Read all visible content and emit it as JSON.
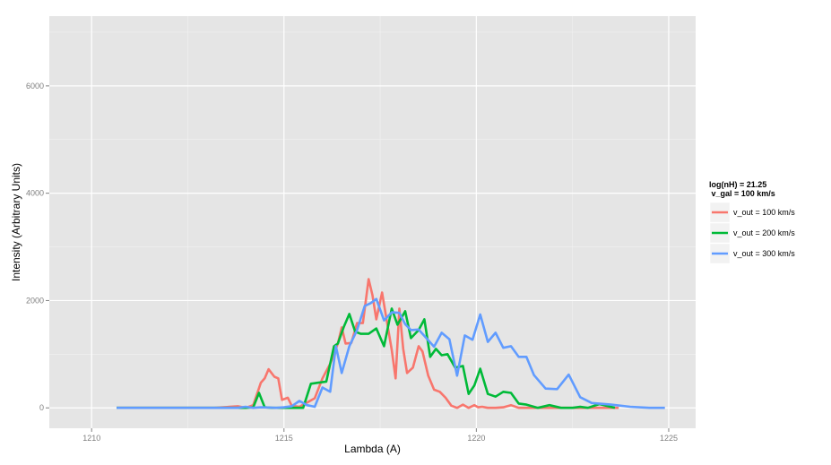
{
  "chart_data": {
    "type": "line",
    "title": "",
    "xlabel": "Lambda (A)",
    "ylabel": "Intensity (Arbitrary Units)",
    "xlim": [
      1208.9,
      1225.7
    ],
    "ylim": [
      -380,
      7300
    ],
    "xticks": [
      1210,
      1215,
      1220,
      1225
    ],
    "yticks": [
      0,
      2000,
      4000,
      6000
    ],
    "grid": true,
    "legend": {
      "position": "right",
      "title_lines": [
        "log(nH) = 21.25",
        " v_gal = 100 km/s"
      ]
    },
    "series": [
      {
        "name": "v_out = 100 km/s",
        "color": "#F8766D",
        "x": [
          1210.65,
          1213.2,
          1213.8,
          1214.0,
          1214.2,
          1214.4,
          1214.5,
          1214.6,
          1214.75,
          1214.85,
          1214.95,
          1215.1,
          1215.2,
          1215.4,
          1215.6,
          1215.8,
          1216.0,
          1216.2,
          1216.4,
          1216.5,
          1216.6,
          1216.75,
          1216.9,
          1217.05,
          1217.2,
          1217.3,
          1217.4,
          1217.55,
          1217.7,
          1217.8,
          1217.9,
          1218.0,
          1218.1,
          1218.2,
          1218.35,
          1218.5,
          1218.6,
          1218.75,
          1218.9,
          1219.05,
          1219.2,
          1219.35,
          1219.5,
          1219.65,
          1219.8,
          1219.95,
          1220.05,
          1220.15,
          1220.3,
          1220.5,
          1220.7,
          1220.9,
          1221.1,
          1221.3,
          1221.5,
          1221.8,
          1222.1,
          1222.4,
          1222.7,
          1223.0,
          1223.3,
          1223.7
        ],
        "y": [
          0,
          0,
          30,
          0,
          50,
          470,
          550,
          720,
          580,
          550,
          150,
          190,
          40,
          20,
          100,
          180,
          550,
          820,
          1200,
          1500,
          1200,
          1210,
          1580,
          1580,
          2400,
          2100,
          1650,
          2150,
          1500,
          1080,
          550,
          1850,
          1100,
          650,
          750,
          1150,
          1050,
          600,
          340,
          300,
          190,
          40,
          0,
          60,
          0,
          50,
          10,
          20,
          0,
          0,
          10,
          50,
          0,
          0,
          0,
          0,
          0,
          0,
          0,
          0,
          0,
          0
        ]
      },
      {
        "name": "v_out = 200 km/s",
        "color": "#00BA38",
        "x": [
          1210.65,
          1213.5,
          1214.0,
          1214.2,
          1214.35,
          1214.5,
          1214.7,
          1215.0,
          1215.3,
          1215.5,
          1215.7,
          1215.9,
          1216.1,
          1216.3,
          1216.4,
          1216.55,
          1216.7,
          1216.85,
          1217.0,
          1217.2,
          1217.4,
          1217.6,
          1217.8,
          1217.95,
          1218.15,
          1218.3,
          1218.5,
          1218.65,
          1218.8,
          1218.95,
          1219.1,
          1219.25,
          1219.45,
          1219.65,
          1219.8,
          1219.95,
          1220.1,
          1220.3,
          1220.5,
          1220.7,
          1220.9,
          1221.1,
          1221.3,
          1221.6,
          1221.9,
          1222.2,
          1222.5,
          1222.7,
          1222.9,
          1223.2,
          1223.6
        ],
        "y": [
          0,
          0,
          0,
          10,
          280,
          10,
          0,
          0,
          0,
          0,
          450,
          470,
          490,
          1150,
          1200,
          1500,
          1750,
          1420,
          1380,
          1380,
          1480,
          1150,
          1850,
          1550,
          1800,
          1300,
          1450,
          1650,
          950,
          1100,
          980,
          1000,
          750,
          780,
          260,
          420,
          730,
          260,
          210,
          300,
          280,
          80,
          60,
          0,
          50,
          0,
          0,
          20,
          0,
          70,
          0
        ]
      },
      {
        "name": "v_out = 300 km/s",
        "color": "#619CFF",
        "x": [
          1210.65,
          1213.8,
          1214.0,
          1214.2,
          1214.4,
          1214.8,
          1215.0,
          1215.2,
          1215.4,
          1215.6,
          1215.8,
          1216.0,
          1216.2,
          1216.35,
          1216.5,
          1216.7,
          1216.9,
          1217.1,
          1217.25,
          1217.4,
          1217.6,
          1217.8,
          1218.0,
          1218.15,
          1218.3,
          1218.5,
          1218.7,
          1218.9,
          1219.1,
          1219.3,
          1219.5,
          1219.7,
          1219.9,
          1220.1,
          1220.3,
          1220.5,
          1220.7,
          1220.9,
          1221.1,
          1221.3,
          1221.5,
          1221.8,
          1222.1,
          1222.4,
          1222.7,
          1223.0,
          1223.5,
          1224.0,
          1224.5,
          1224.9
        ],
        "y": [
          0,
          0,
          20,
          0,
          10,
          0,
          10,
          30,
          130,
          50,
          20,
          380,
          300,
          1150,
          650,
          1150,
          1450,
          1900,
          1950,
          2030,
          1630,
          1780,
          1770,
          1560,
          1450,
          1460,
          1300,
          1140,
          1400,
          1280,
          600,
          1350,
          1270,
          1740,
          1230,
          1400,
          1120,
          1150,
          950,
          950,
          610,
          360,
          350,
          620,
          200,
          90,
          60,
          20,
          0,
          0
        ]
      }
    ]
  }
}
